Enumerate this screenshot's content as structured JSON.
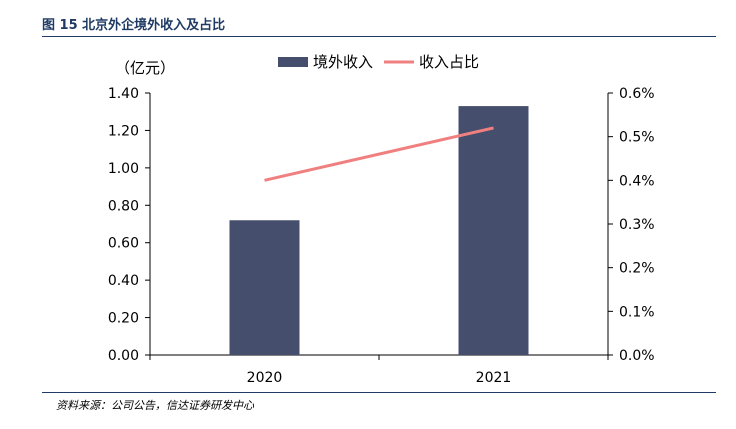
{
  "figure": {
    "label": "图 15",
    "title": "北京外企境外收入及占比",
    "source": "资料来源：公司公告，信达证券研发中心"
  },
  "colors": {
    "bar": "#454e6c",
    "line": "#f08080",
    "accent": "#1f3a64"
  },
  "chart_data": {
    "type": "bar",
    "categories": [
      "2020",
      "2021"
    ],
    "unit_label": "（亿元）",
    "series": [
      {
        "name": "境外收入",
        "type": "bar",
        "axis": "left",
        "values": [
          0.72,
          1.33
        ]
      },
      {
        "name": "收入占比",
        "type": "line",
        "axis": "right",
        "values": [
          0.4,
          0.52
        ]
      }
    ],
    "y_left": {
      "min": 0,
      "max": 1.4,
      "ticks": [
        "0.00",
        "0.20",
        "0.40",
        "0.60",
        "0.80",
        "1.00",
        "1.20",
        "1.40"
      ]
    },
    "y_right": {
      "min": 0,
      "max": 0.6,
      "ticks": [
        "0.0%",
        "0.1%",
        "0.2%",
        "0.3%",
        "0.4%",
        "0.5%",
        "0.6%"
      ]
    },
    "grid": false,
    "legend_position": "top-center"
  }
}
